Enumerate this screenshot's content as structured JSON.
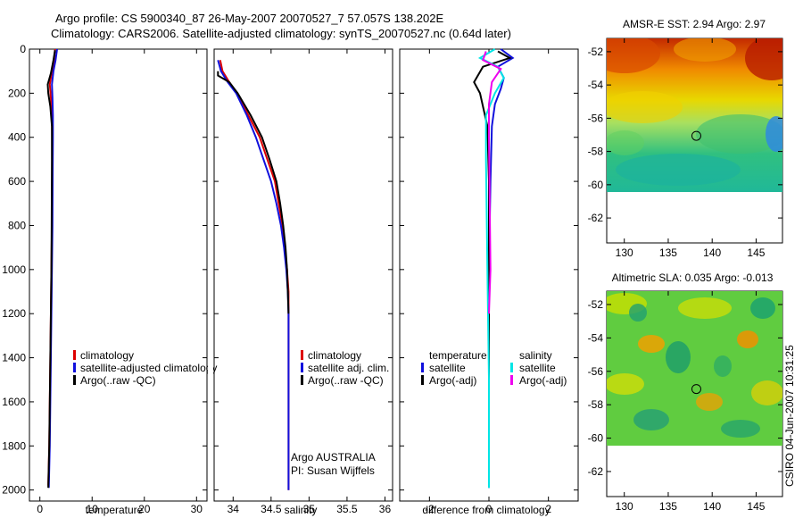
{
  "figure": {
    "title_line1": "Argo profile: CS 5900340_87 26-May-2007 20070527_7 57.057S 138.202E",
    "title_line2": "Climatology: CARS2006. Satellite-adjusted climatology: synTS_20070527.nc (0.64d later)",
    "credit": "CSIRO 04-Jun-2007 10:31:25",
    "argo_label": "Argo AUSTRALIA",
    "pi_label": "PI: Susan Wijffels"
  },
  "colors": {
    "climatology": "#dd0000",
    "satellite": "#1010dd",
    "argo": "#000000",
    "sal_satellite": "#00e5e5",
    "sal_argo": "#ee00ee"
  },
  "chart_data": [
    {
      "id": "temperature",
      "type": "line",
      "xlabel": "temperature",
      "ylabel": "",
      "xlim": [
        -2,
        32
      ],
      "ylim": [
        2050,
        0
      ],
      "xticks": [
        0,
        10,
        20,
        30
      ],
      "yticks": [
        0,
        200,
        400,
        600,
        800,
        1000,
        1200,
        1400,
        1600,
        1800,
        2000
      ],
      "legend": [
        "climatology",
        "satellite-adjusted climatology",
        "Argo(..raw -QC)"
      ],
      "series": [
        {
          "name": "climatology",
          "color": "#dd0000",
          "x": [
            2.9,
            2.7,
            2.3,
            1.9,
            2.1,
            2.3,
            2.35,
            2.35,
            2.3,
            2.2,
            2.1,
            2.0,
            1.9,
            1.8,
            1.6
          ],
          "y": [
            0,
            50,
            100,
            160,
            220,
            300,
            400,
            600,
            800,
            1000,
            1200,
            1400,
            1600,
            1800,
            1980
          ]
        },
        {
          "name": "satellite",
          "color": "#1010dd",
          "x": [
            3.3,
            3.0,
            2.6,
            2.3,
            2.4,
            2.5,
            2.5,
            2.45,
            2.4,
            2.3,
            2.2,
            2.1,
            2.0,
            1.9,
            1.7
          ],
          "y": [
            0,
            50,
            100,
            160,
            220,
            300,
            400,
            600,
            800,
            1000,
            1200,
            1400,
            1600,
            1800,
            1990
          ]
        },
        {
          "name": "Argo",
          "color": "#000000",
          "x": [
            2.9,
            2.6,
            2.1,
            1.5,
            1.6,
            2.0,
            2.3,
            2.3,
            2.25,
            2.2,
            2.1,
            2.0,
            1.9,
            1.8,
            1.6
          ],
          "y": [
            5,
            50,
            110,
            160,
            200,
            260,
            350,
            500,
            800,
            1000,
            1200,
            1400,
            1600,
            1800,
            1990
          ]
        }
      ]
    },
    {
      "id": "salinity",
      "type": "line",
      "xlabel": "salinity",
      "ylabel": "",
      "xlim": [
        33.75,
        36.1
      ],
      "ylim": [
        2050,
        0
      ],
      "xticks": [
        34,
        34.5,
        35,
        35.5,
        36
      ],
      "yticks": [
        0,
        200,
        400,
        600,
        800,
        1000,
        1200,
        1400,
        1600,
        1800,
        2000
      ],
      "legend": [
        "climatology",
        "satellite adj. clim.",
        "Argo(..raw -QC)"
      ],
      "series": [
        {
          "name": "climatology",
          "color": "#dd0000",
          "x": [
            33.83,
            33.86,
            33.95,
            34.05,
            34.2,
            34.35,
            34.45,
            34.55,
            34.6,
            34.65,
            34.68,
            34.71,
            34.73,
            34.73,
            34.73,
            34.73,
            34.73,
            34.73
          ],
          "y": [
            50,
            100,
            150,
            200,
            300,
            400,
            500,
            600,
            700,
            800,
            900,
            1000,
            1100,
            1200,
            1400,
            1600,
            1800,
            2000
          ]
        },
        {
          "name": "satellite",
          "color": "#1010dd",
          "x": [
            33.8,
            33.84,
            33.93,
            34.04,
            34.18,
            34.3,
            34.4,
            34.5,
            34.57,
            34.63,
            34.67,
            34.7,
            34.72,
            34.73,
            34.73,
            34.73,
            34.73,
            34.73
          ],
          "y": [
            50,
            100,
            150,
            200,
            300,
            400,
            500,
            600,
            700,
            800,
            900,
            1000,
            1100,
            1200,
            1400,
            1600,
            1800,
            2000
          ]
        },
        {
          "name": "Argo",
          "color": "#000000",
          "x": [
            33.8,
            33.8,
            33.95,
            34.06,
            34.23,
            34.38,
            34.48,
            34.57,
            34.62,
            34.66,
            34.69,
            34.71,
            34.72,
            34.73
          ],
          "y": [
            100,
            120,
            150,
            200,
            300,
            400,
            500,
            600,
            700,
            800,
            900,
            1000,
            1100,
            1200
          ]
        }
      ]
    },
    {
      "id": "difference",
      "type": "line",
      "xlabel": "difference from climatology",
      "ylabel": "",
      "xlim": [
        -3,
        3
      ],
      "ylim": [
        2050,
        0
      ],
      "xticks": [
        -2,
        0,
        2
      ],
      "yticks": [
        0,
        200,
        400,
        600,
        800,
        1000,
        1200,
        1400,
        1600,
        1800,
        2000
      ],
      "legend_headers": [
        "temperature",
        "salinity"
      ],
      "legend": [
        "satellite",
        "Argo(-adj)",
        "satellite",
        "Argo(-adj)"
      ],
      "series": [
        {
          "name": "temperature satellite",
          "color": "#1010dd",
          "x": [
            0.4,
            0.8,
            0.3,
            0.5,
            0.4,
            0.2,
            0.1,
            0.05,
            0.0,
            0.0,
            0.0
          ],
          "y": [
            0,
            40,
            80,
            130,
            180,
            250,
            350,
            600,
            1000,
            1500,
            1990
          ]
        },
        {
          "name": "temperature Argo",
          "color": "#000000",
          "x": [
            0.3,
            0.7,
            -0.2,
            -0.5,
            -0.3,
            -0.2,
            -0.05,
            0.0,
            0.0,
            0.0
          ],
          "y": [
            10,
            40,
            80,
            150,
            200,
            260,
            350,
            600,
            1200,
            1970
          ]
        },
        {
          "name": "salinity satellite",
          "color": "#00e5e5",
          "x": [
            0.2,
            -0.3,
            0.3,
            0.5,
            0.2,
            -0.1,
            -0.1,
            -0.05,
            0.0,
            0.0
          ],
          "y": [
            0,
            40,
            80,
            130,
            200,
            300,
            500,
            1000,
            1500,
            1990
          ]
        },
        {
          "name": "salinity Argo",
          "color": "#ee00ee",
          "x": [
            -0.1,
            -0.2,
            0.4,
            0.1,
            0.0,
            0.0,
            0.05,
            0.0
          ],
          "y": [
            10,
            50,
            90,
            150,
            250,
            400,
            1000,
            1200
          ]
        }
      ]
    },
    {
      "id": "sst_map",
      "type": "heatmap",
      "title": "AMSR-E SST: 2.94  Argo: 2.97",
      "xlim": [
        128,
        148
      ],
      "ylim": [
        -63.5,
        -51.2
      ],
      "xticks": [
        130,
        135,
        140,
        145
      ],
      "yticks": [
        -52,
        -54,
        -56,
        -58,
        -60,
        -62
      ],
      "data_lat_bottom": -60.1,
      "marker": {
        "lon": 138.2,
        "lat": -57.06
      }
    },
    {
      "id": "sla_map",
      "type": "heatmap",
      "title": "Altimetric SLA: 0.035  Argo: -0.013",
      "xlim": [
        128,
        148
      ],
      "ylim": [
        -63.5,
        -51.2
      ],
      "xticks": [
        130,
        135,
        140,
        145
      ],
      "yticks": [
        -52,
        -54,
        -56,
        -58,
        -60,
        -62
      ],
      "data_lat_bottom": -60.1,
      "marker": {
        "lon": 138.2,
        "lat": -57.06
      }
    }
  ]
}
